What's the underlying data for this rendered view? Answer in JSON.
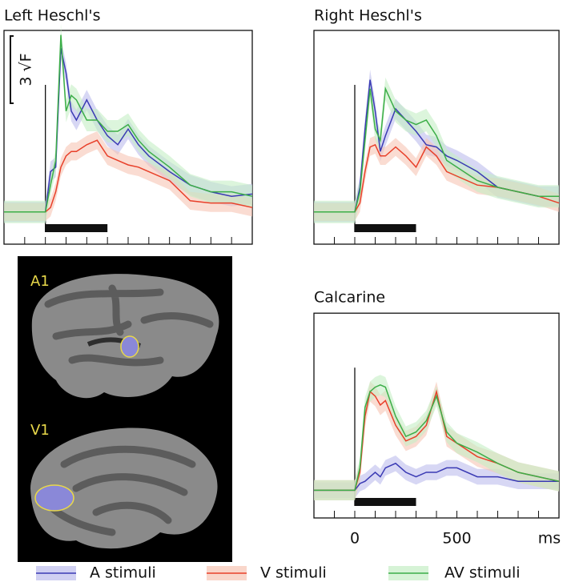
{
  "chart_data": [
    {
      "type": "line",
      "title": "Left Heschl's",
      "x": [
        -200,
        -150,
        -100,
        -50,
        0,
        25,
        50,
        75,
        100,
        125,
        150,
        200,
        250,
        300,
        350,
        400,
        450,
        500,
        600,
        700,
        800,
        900,
        1000
      ],
      "xlim": [
        -200,
        1000
      ],
      "xticks": [
        -200,
        -100,
        0,
        100,
        200,
        300,
        400,
        500,
        600,
        700,
        800,
        900,
        1000
      ],
      "ylim": [
        0,
        9
      ],
      "stimulus": [
        0,
        300
      ],
      "scale_bar": {
        "value": 3,
        "label": "3 √F"
      },
      "series": [
        {
          "name": "A stimuli",
          "color": "#3a3ab4",
          "band_color": "#bcbcec",
          "error": 0.45,
          "values": [
            0.9,
            0.9,
            0.9,
            0.9,
            0.9,
            2.7,
            2.9,
            8.2,
            7.1,
            5.4,
            5.0,
            5.9,
            5.0,
            4.3,
            3.9,
            4.6,
            3.9,
            3.4,
            2.7,
            2.1,
            1.8,
            1.6,
            1.7
          ]
        },
        {
          "name": "V stimuli",
          "color": "#e8402a",
          "band_color": "#f6c4b4",
          "error": 0.4,
          "values": [
            0.9,
            0.9,
            0.9,
            0.9,
            0.9,
            1.1,
            1.8,
            2.9,
            3.4,
            3.6,
            3.6,
            3.9,
            4.1,
            3.4,
            3.2,
            3.0,
            2.9,
            2.7,
            2.3,
            1.4,
            1.3,
            1.3,
            1.1
          ]
        },
        {
          "name": "AV stimuli",
          "color": "#3cae48",
          "band_color": "#c4eec4",
          "error": 0.5,
          "values": [
            0.9,
            0.9,
            0.9,
            0.9,
            0.9,
            2.1,
            3.2,
            8.8,
            5.4,
            6.1,
            5.9,
            5.0,
            5.0,
            4.5,
            4.5,
            4.8,
            4.1,
            3.6,
            2.9,
            2.1,
            1.8,
            1.8,
            1.6
          ]
        }
      ]
    },
    {
      "type": "line",
      "title": "Right Heschl's",
      "x": [
        -200,
        -150,
        -100,
        -50,
        0,
        25,
        50,
        75,
        100,
        125,
        150,
        200,
        250,
        300,
        350,
        400,
        450,
        500,
        600,
        700,
        800,
        900,
        1000
      ],
      "xlim": [
        -200,
        1000
      ],
      "xticks": [
        -200,
        -100,
        0,
        100,
        200,
        300,
        400,
        500,
        600,
        700,
        800,
        900,
        1000
      ],
      "ylim": [
        0,
        9
      ],
      "stimulus": [
        0,
        300
      ],
      "series": [
        {
          "name": "A stimuli",
          "color": "#3a3ab4",
          "band_color": "#bcbcec",
          "error": 0.45,
          "values": [
            0.9,
            0.9,
            0.9,
            0.9,
            0.9,
            2.0,
            4.6,
            6.8,
            5.4,
            3.6,
            4.3,
            5.5,
            5.0,
            4.5,
            3.9,
            3.8,
            3.4,
            3.2,
            2.7,
            2.0,
            1.8,
            1.6,
            1.6
          ]
        },
        {
          "name": "V stimuli",
          "color": "#e8402a",
          "band_color": "#f6c4b4",
          "error": 0.4,
          "values": [
            0.9,
            0.9,
            0.9,
            0.9,
            0.9,
            1.3,
            2.7,
            3.8,
            3.9,
            3.4,
            3.4,
            3.8,
            3.4,
            2.9,
            3.8,
            3.4,
            2.7,
            2.5,
            2.1,
            2.0,
            1.8,
            1.6,
            1.3
          ]
        },
        {
          "name": "AV stimuli",
          "color": "#3cae48",
          "band_color": "#c4eec4",
          "error": 0.5,
          "values": [
            0.9,
            0.9,
            0.9,
            0.9,
            0.9,
            1.8,
            4.1,
            6.4,
            4.6,
            4.1,
            6.4,
            5.4,
            5.0,
            4.8,
            5.0,
            4.3,
            3.2,
            2.9,
            2.3,
            2.0,
            1.8,
            1.6,
            1.6
          ]
        }
      ]
    },
    {
      "type": "line",
      "title": "Calcarine",
      "x": [
        -200,
        -150,
        -100,
        -50,
        0,
        25,
        50,
        75,
        100,
        125,
        150,
        200,
        250,
        300,
        350,
        400,
        450,
        500,
        600,
        700,
        800,
        900,
        1000
      ],
      "xlim": [
        -200,
        1000
      ],
      "xticks": [
        -200,
        -100,
        0,
        100,
        200,
        300,
        400,
        500,
        600,
        700,
        800,
        900,
        1000
      ],
      "labeled_xticks": [
        0,
        500
      ],
      "xlabel": "ms",
      "ylim": [
        0,
        8.6
      ],
      "stimulus": [
        0,
        300
      ],
      "series": [
        {
          "name": "A stimuli",
          "color": "#3a3ab4",
          "band_color": "#bcbcec",
          "error": 0.35,
          "values": [
            0.7,
            0.7,
            0.7,
            0.7,
            0.7,
            1.0,
            1.1,
            1.3,
            1.5,
            1.3,
            1.7,
            1.9,
            1.5,
            1.3,
            1.5,
            1.5,
            1.7,
            1.7,
            1.3,
            1.3,
            1.1,
            1.1,
            1.1
          ]
        },
        {
          "name": "V stimuli",
          "color": "#e8402a",
          "band_color": "#f6c4b4",
          "error": 0.45,
          "values": [
            0.7,
            0.7,
            0.7,
            0.7,
            0.7,
            1.5,
            4.0,
            5.1,
            4.9,
            4.5,
            4.7,
            3.6,
            2.9,
            3.1,
            3.6,
            5.1,
            3.1,
            2.8,
            2.2,
            1.9,
            1.5,
            1.3,
            1.1
          ]
        },
        {
          "name": "AV stimuli",
          "color": "#3cae48",
          "band_color": "#c4eec4",
          "error": 0.45,
          "values": [
            0.7,
            0.7,
            0.7,
            0.7,
            0.7,
            1.7,
            4.4,
            5.1,
            5.3,
            5.4,
            5.3,
            4.0,
            3.1,
            3.3,
            3.8,
            4.9,
            3.3,
            2.8,
            2.4,
            1.9,
            1.5,
            1.3,
            1.1
          ]
        }
      ]
    }
  ],
  "brain_panel": {
    "labels": [
      "A1",
      "V1"
    ]
  }
}
